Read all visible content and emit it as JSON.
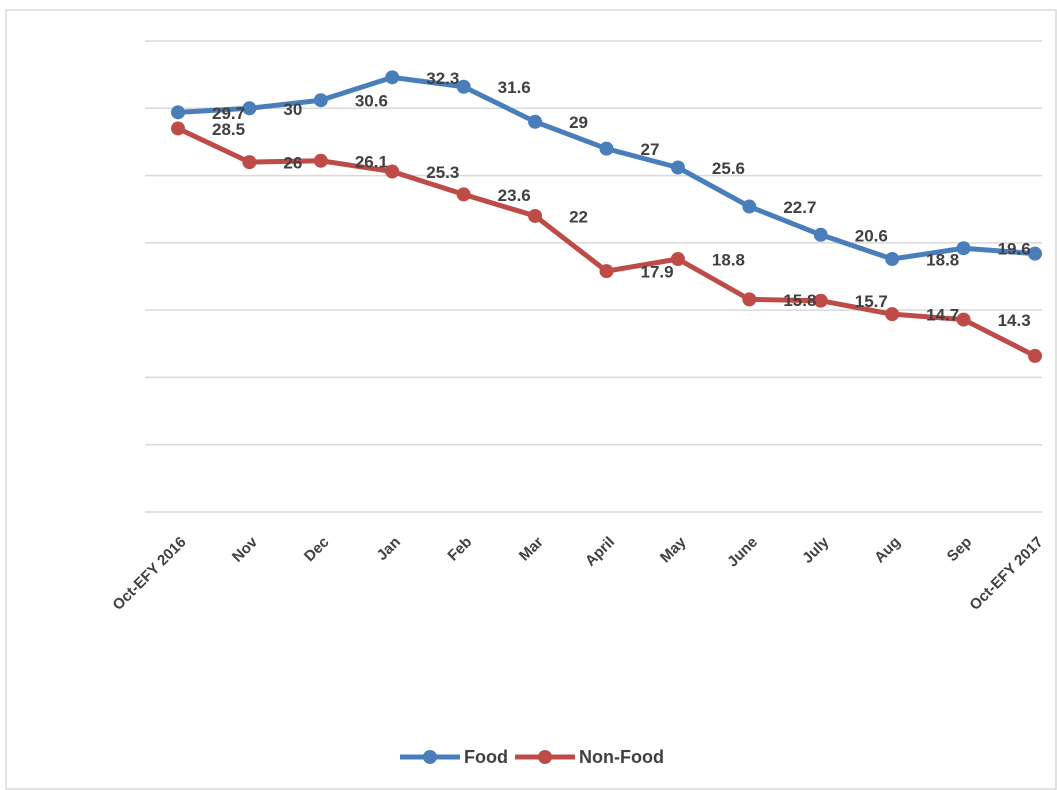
{
  "chart_data": {
    "type": "line",
    "categories": [
      "Oct-EFY 2016",
      "Nov",
      "Dec",
      "Jan",
      "Feb",
      "Mar",
      "April",
      "May",
      "June",
      "July",
      "Aug",
      "Sep",
      "Oct-EFY 2017"
    ],
    "series": [
      {
        "name": "Food",
        "color": "#4a7ebb",
        "values": [
          29.7,
          30.0,
          30.6,
          32.3,
          31.6,
          29.0,
          27.0,
          25.6,
          22.7,
          20.6,
          18.8,
          19.6,
          19.2
        ]
      },
      {
        "name": "Non-Food",
        "color": "#be4b48",
        "values": [
          28.5,
          26.0,
          26.1,
          25.3,
          23.6,
          22.0,
          17.9,
          18.8,
          15.8,
          15.7,
          14.7,
          14.3,
          11.6
        ]
      }
    ],
    "ylim": [
      0,
      35
    ],
    "yticks": [
      0,
      5,
      10,
      15,
      20,
      25,
      30,
      35
    ],
    "grid": true,
    "legend": "bottom"
  }
}
